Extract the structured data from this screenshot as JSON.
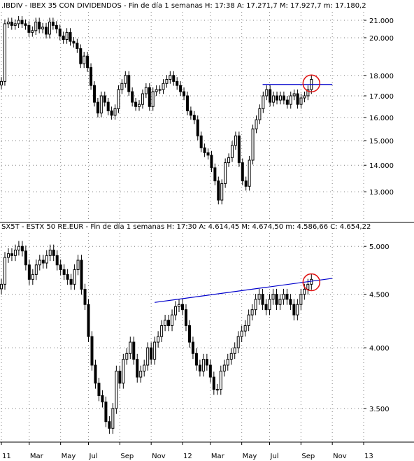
{
  "chart_data": [
    {
      "type": "candlestick",
      "title": ".IBDIV - IBEX 35 CON DIVIDENDOS - Fin de día 1 semanas  H: 17:38  A: 17.271,7  M: 17.927,7  m: 17.180,2",
      "ylim": [
        12000,
        21500
      ],
      "y_ticks": [
        {
          "v": 21000,
          "label": "21.000"
        },
        {
          "v": 20000,
          "label": "20.000"
        },
        {
          "v": 18000,
          "label": "18.000"
        },
        {
          "v": 17000,
          "label": "17.000"
        },
        {
          "v": 16000,
          "label": "16.000"
        },
        {
          "v": 15000,
          "label": "15.000"
        },
        {
          "v": 14000,
          "label": "14.000"
        },
        {
          "v": 13000,
          "label": "13.000"
        }
      ],
      "y_log": true,
      "resistance_level": 17550,
      "resistance_line": {
        "from_week": 75,
        "to_week": 95,
        "value": 17550
      },
      "highlight_circle": {
        "week": 89,
        "value": 17600
      },
      "weekly_close": [
        17700,
        20800,
        20900,
        20700,
        20800,
        21000,
        20800,
        20700,
        20300,
        20400,
        20900,
        20500,
        20600,
        20200,
        20900,
        20700,
        20500,
        20100,
        19900,
        20300,
        19800,
        19700,
        19400,
        18600,
        19000,
        18400,
        17500,
        16700,
        16200,
        17000,
        16700,
        16300,
        16100,
        16400,
        17300,
        17600,
        18000,
        17200,
        16700,
        16500,
        16600,
        17100,
        17400,
        16500,
        17200,
        17300,
        17300,
        17600,
        17800,
        18000,
        17700,
        17500,
        17200,
        17000,
        16300,
        16100,
        15900,
        15200,
        14700,
        14500,
        14400,
        13900,
        13400,
        12700,
        13300,
        14100,
        14300,
        14800,
        15200,
        14100,
        13400,
        13200,
        14200,
        15500,
        15900,
        16400,
        17000,
        17300,
        16700,
        17000,
        16800,
        17000,
        16800,
        16600,
        17000,
        17100,
        16600,
        16900,
        17000,
        17300,
        17800
      ]
    },
    {
      "type": "candlestick",
      "title": "SX5T - ESTX 50 RE.EUR - Fin de día 1 semanas  H: 17:30  A: 4.614,45  M: 4.674,50  m: 4.586,66  C: 4.654,22",
      "ylim": [
        3250,
        5150
      ],
      "y_ticks": [
        {
          "v": 5000,
          "label": "5.000"
        },
        {
          "v": 4500,
          "label": "4.500"
        },
        {
          "v": 4000,
          "label": "4.000"
        },
        {
          "v": 3500,
          "label": "3.500"
        }
      ],
      "y_log": true,
      "trendline": {
        "from_week": 44,
        "from_value": 4420,
        "to_week": 95,
        "to_value": 4660
      },
      "highlight_circle": {
        "week": 89,
        "value": 4620
      },
      "weekly_close": [
        4600,
        4880,
        4920,
        4900,
        4960,
        5000,
        4950,
        4800,
        4650,
        4700,
        4800,
        4850,
        4820,
        4900,
        4960,
        4900,
        4800,
        4750,
        4700,
        4650,
        4600,
        4750,
        4850,
        4550,
        4400,
        4100,
        3850,
        3700,
        3600,
        3550,
        3400,
        3350,
        3500,
        3800,
        3700,
        3900,
        3950,
        4050,
        3900,
        3750,
        3800,
        3850,
        4000,
        3900,
        4050,
        4100,
        4200,
        4250,
        4200,
        4300,
        4380,
        4400,
        4350,
        4200,
        4050,
        3950,
        3850,
        3800,
        3900,
        3850,
        3750,
        3650,
        3650,
        3800,
        3850,
        3900,
        3950,
        4000,
        4100,
        4150,
        4200,
        4300,
        4350,
        4450,
        4500,
        4400,
        4350,
        4450,
        4500,
        4400,
        4450,
        4500,
        4450,
        4400,
        4300,
        4400,
        4500,
        4550,
        4600,
        4650
      ]
    }
  ],
  "x_axis": {
    "labels": [
      {
        "week": 0,
        "label": "11"
      },
      {
        "week": 8,
        "label": "Mar"
      },
      {
        "week": 17,
        "label": "May"
      },
      {
        "week": 25,
        "label": "Jul"
      },
      {
        "week": 34,
        "label": "Sep"
      },
      {
        "week": 43,
        "label": "Nov"
      },
      {
        "week": 52,
        "label": "12"
      },
      {
        "week": 60,
        "label": "Mar"
      },
      {
        "week": 69,
        "label": "May"
      },
      {
        "week": 77,
        "label": "Jul"
      },
      {
        "week": 86,
        "label": "Sep"
      },
      {
        "week": 95,
        "label": "Nov"
      },
      {
        "week": 104,
        "label": "13"
      }
    ]
  },
  "colors": {
    "candle": "#000000",
    "line": "#0000cc",
    "circle": "#e01010",
    "grid": "#000000",
    "background": "#ffffff"
  }
}
